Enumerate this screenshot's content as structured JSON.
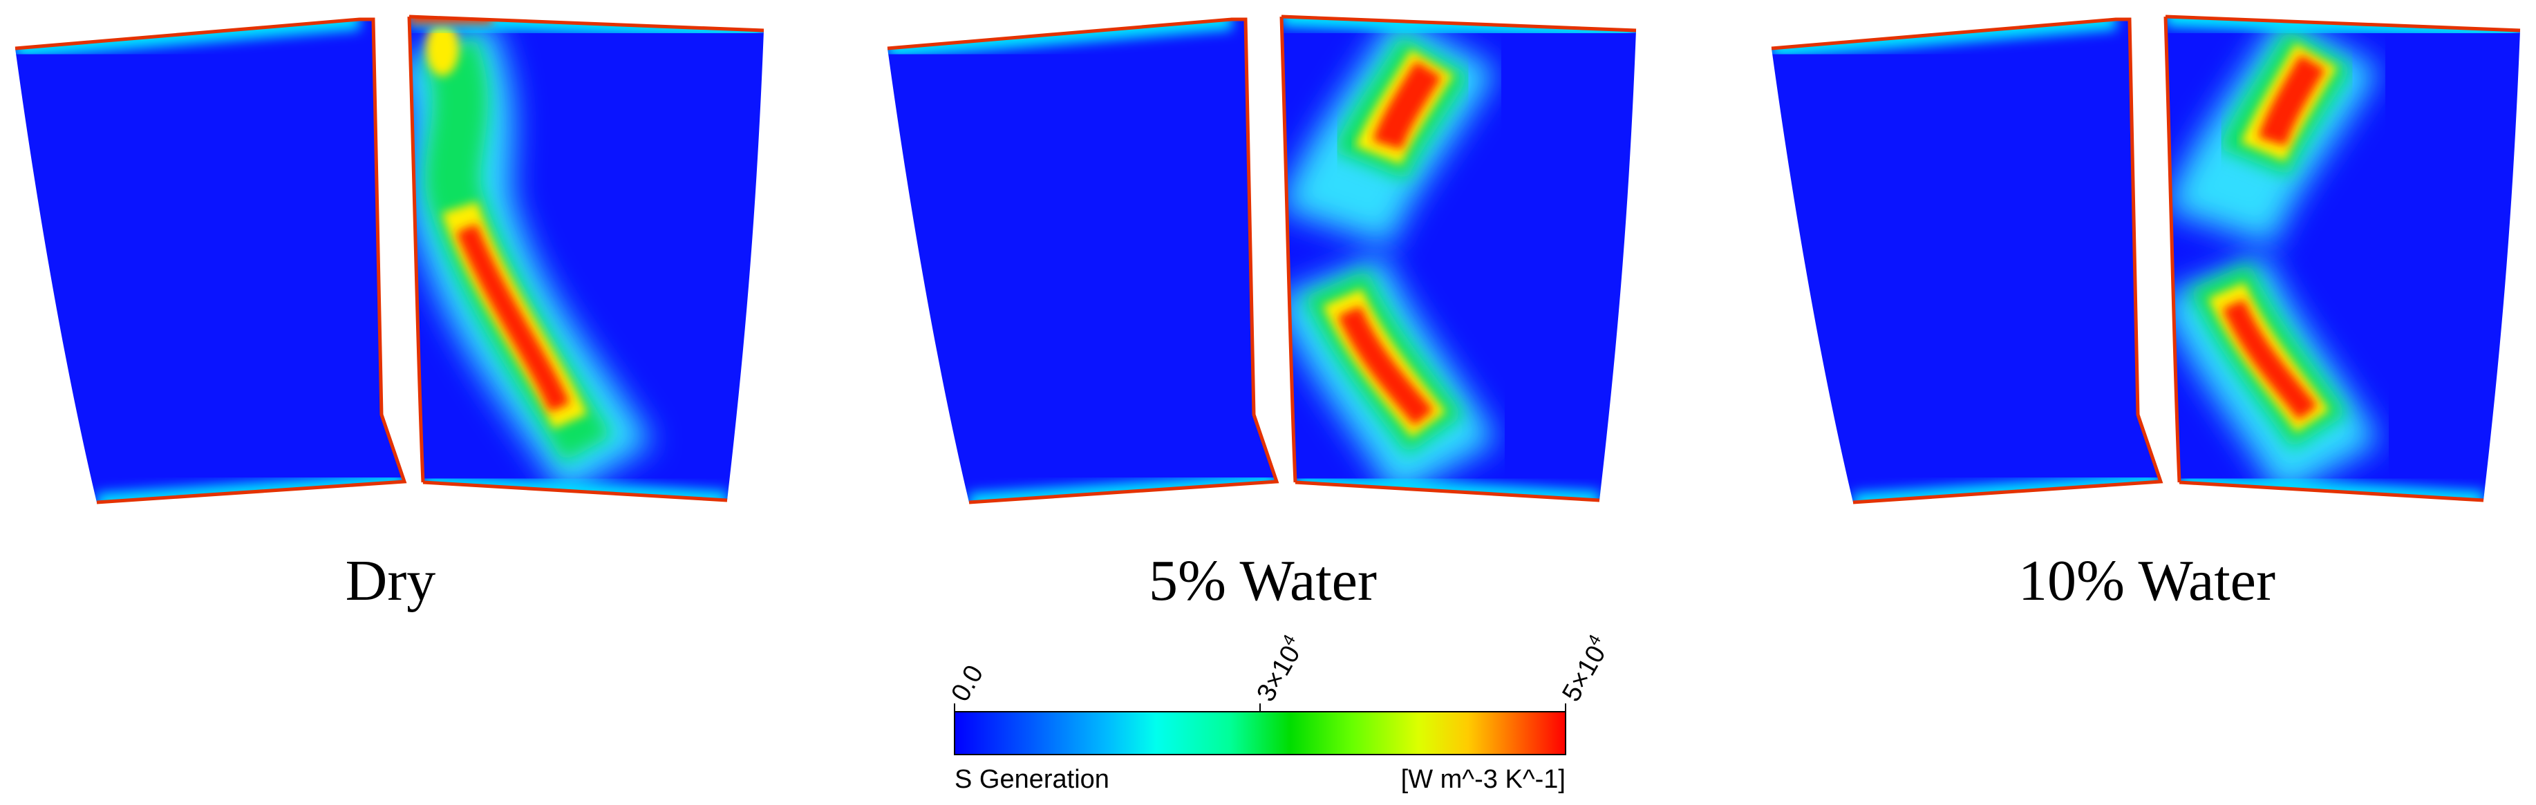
{
  "panels": [
    {
      "label": "Dry"
    },
    {
      "label": "5% Water"
    },
    {
      "label": "10% Water"
    }
  ],
  "colorbar": {
    "title": "S Generation",
    "units": "[W m^-3 K^-1]",
    "ticks": [
      {
        "base": "0.0",
        "exp": ""
      },
      {
        "base": "3×10",
        "exp": "4"
      },
      {
        "base": "5×10",
        "exp": "4"
      }
    ],
    "colormap": [
      "#0000ff",
      "#0066ff",
      "#00ccff",
      "#00ffcc",
      "#00ff66",
      "#00dd00",
      "#66ff00",
      "#ccff00",
      "#ffff00",
      "#ffbb00",
      "#ff6600",
      "#ff0000"
    ]
  },
  "colors": {
    "background_field": "#0a14ff",
    "wall_edge": "#e43200"
  }
}
